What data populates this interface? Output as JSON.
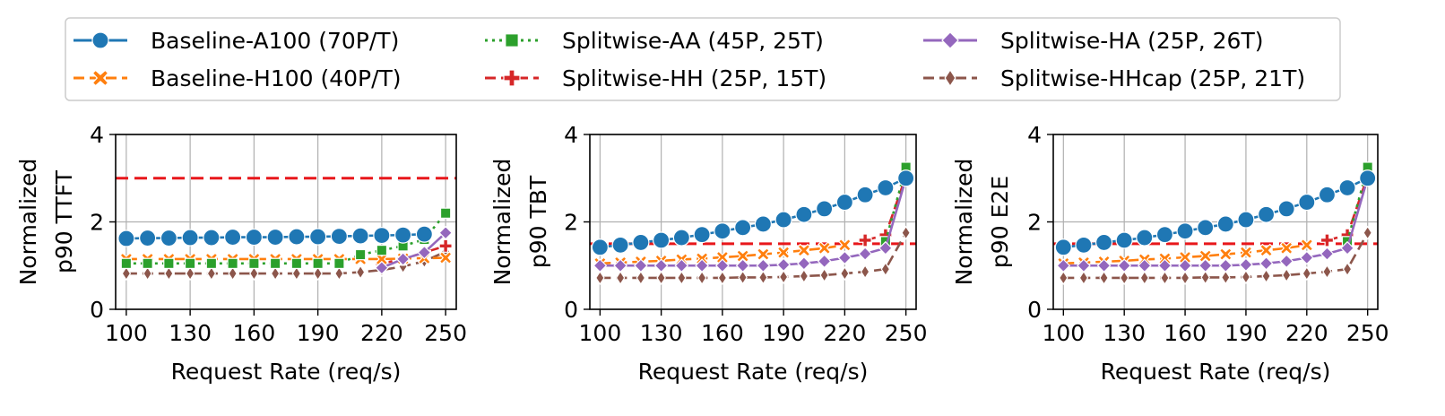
{
  "legend": {
    "entries": [
      {
        "label": "Baseline-A100 (70P/T)",
        "series": "A100",
        "color": "#1f77b4",
        "marker": "circle",
        "dash": "solid"
      },
      {
        "label": "Splitwise-AA (45P, 25T)",
        "series": "AA",
        "color": "#2ca02c",
        "marker": "square",
        "dash": "dotted"
      },
      {
        "label": "Splitwise-HA (25P, 26T)",
        "series": "HA",
        "color": "#9467bd",
        "marker": "diamond",
        "dash": "solid"
      },
      {
        "label": "Baseline-H100 (40P/T)",
        "series": "H100",
        "color": "#ff7f0e",
        "marker": "x",
        "dash": "dashed"
      },
      {
        "label": "Splitwise-HH (25P, 15T)",
        "series": "HH",
        "color": "#d62728",
        "marker": "plus",
        "dash": "dashed"
      },
      {
        "label": "Splitwise-HHcap (25P, 21T)",
        "series": "HHcap",
        "color": "#8c564b",
        "marker": "thin_diamond",
        "dash": "dashed"
      }
    ]
  },
  "chart_data": [
    {
      "type": "line",
      "title": "",
      "xlabel": "Request Rate (req/s)",
      "ylabel": [
        "Normalized",
        "p90 TTFT"
      ],
      "xlim": [
        95,
        255
      ],
      "ylim": [
        0,
        4
      ],
      "xticks": [
        100,
        130,
        160,
        190,
        220,
        250
      ],
      "yticks": [
        0,
        2,
        4
      ],
      "grid": true,
      "slo_line": 3,
      "x": [
        100,
        110,
        120,
        130,
        140,
        150,
        160,
        170,
        180,
        190,
        200,
        210,
        220,
        230,
        240,
        250
      ],
      "series": [
        {
          "name": "Baseline-A100 (70P/T)",
          "key": "A100",
          "values": [
            1.62,
            1.63,
            1.63,
            1.64,
            1.64,
            1.65,
            1.65,
            1.65,
            1.66,
            1.66,
            1.67,
            1.68,
            1.69,
            1.7,
            1.72,
            null
          ]
        },
        {
          "name": "Baseline-H100 (40P/T)",
          "key": "H100",
          "values": [
            1.15,
            1.15,
            1.15,
            1.15,
            1.15,
            1.15,
            1.15,
            1.15,
            1.15,
            1.15,
            1.15,
            1.15,
            1.15,
            1.16,
            1.17,
            1.18
          ]
        },
        {
          "name": "Splitwise-AA (45P, 25T)",
          "key": "AA",
          "values": [
            1.05,
            1.05,
            1.05,
            1.05,
            1.05,
            1.05,
            1.05,
            1.05,
            1.05,
            1.05,
            1.05,
            1.25,
            1.35,
            1.45,
            1.6,
            2.2
          ]
        },
        {
          "name": "Splitwise-HH (25P, 15T)",
          "key": "HH",
          "values": [
            null,
            null,
            null,
            null,
            null,
            null,
            null,
            null,
            null,
            null,
            null,
            null,
            1.05,
            1.15,
            1.3,
            1.45
          ]
        },
        {
          "name": "Splitwise-HA (25P, 26T)",
          "key": "HA",
          "values": [
            null,
            null,
            null,
            null,
            null,
            null,
            null,
            null,
            null,
            null,
            null,
            null,
            0.95,
            1.15,
            1.3,
            1.75
          ]
        },
        {
          "name": "Splitwise-HHcap (25P, 21T)",
          "key": "HHcap",
          "values": [
            0.82,
            0.82,
            0.82,
            0.82,
            0.82,
            0.82,
            0.82,
            0.82,
            0.82,
            0.82,
            0.82,
            0.85,
            0.9,
            0.98,
            1.1,
            1.32
          ]
        }
      ]
    },
    {
      "type": "line",
      "title": "",
      "xlabel": "Request Rate (req/s)",
      "ylabel": [
        "Normalized",
        "p90 TBT"
      ],
      "xlim": [
        95,
        255
      ],
      "ylim": [
        0,
        4
      ],
      "xticks": [
        100,
        130,
        160,
        190,
        220,
        250
      ],
      "yticks": [
        0,
        2,
        4
      ],
      "grid": true,
      "slo_line": 1.5,
      "x": [
        100,
        110,
        120,
        130,
        140,
        150,
        160,
        170,
        180,
        190,
        200,
        210,
        220,
        230,
        240,
        250
      ],
      "series": [
        {
          "name": "Baseline-A100 (70P/T)",
          "key": "A100",
          "values": [
            1.42,
            1.47,
            1.53,
            1.58,
            1.64,
            1.71,
            1.79,
            1.87,
            1.95,
            2.05,
            2.17,
            2.3,
            2.45,
            2.62,
            2.78,
            3.0
          ]
        },
        {
          "name": "Baseline-H100 (40P/T)",
          "key": "H100",
          "values": [
            1.05,
            1.07,
            1.09,
            1.11,
            1.14,
            1.16,
            1.19,
            1.22,
            1.26,
            1.3,
            1.35,
            1.4,
            1.47,
            null,
            null,
            null
          ]
        },
        {
          "name": "Splitwise-AA (45P, 25T)",
          "key": "AA",
          "values": [
            null,
            null,
            null,
            null,
            null,
            null,
            null,
            null,
            null,
            null,
            null,
            null,
            null,
            null,
            1.55,
            3.25
          ]
        },
        {
          "name": "Splitwise-HH (25P, 15T)",
          "key": "HH",
          "values": [
            null,
            null,
            null,
            null,
            null,
            null,
            null,
            null,
            null,
            null,
            null,
            null,
            null,
            1.58,
            1.7,
            3.05
          ]
        },
        {
          "name": "Splitwise-HA (25P, 26T)",
          "key": "HA",
          "values": [
            1.0,
            1.0,
            1.0,
            1.0,
            1.0,
            1.0,
            1.0,
            1.0,
            1.0,
            1.02,
            1.05,
            1.1,
            1.18,
            1.27,
            1.4,
            3.0
          ]
        },
        {
          "name": "Splitwise-HHcap (25P, 21T)",
          "key": "HHcap",
          "values": [
            0.72,
            0.72,
            0.72,
            0.72,
            0.72,
            0.72,
            0.72,
            0.73,
            0.73,
            0.74,
            0.76,
            0.78,
            0.82,
            0.86,
            0.92,
            1.75
          ]
        }
      ]
    },
    {
      "type": "line",
      "title": "",
      "xlabel": "Request Rate (req/s)",
      "ylabel": [
        "Normalized",
        "p90 E2E"
      ],
      "xlim": [
        95,
        255
      ],
      "ylim": [
        0,
        4
      ],
      "xticks": [
        100,
        130,
        160,
        190,
        220,
        250
      ],
      "yticks": [
        0,
        2,
        4
      ],
      "grid": true,
      "slo_line": 1.5,
      "x": [
        100,
        110,
        120,
        130,
        140,
        150,
        160,
        170,
        180,
        190,
        200,
        210,
        220,
        230,
        240,
        250
      ],
      "series": [
        {
          "name": "Baseline-A100 (70P/T)",
          "key": "A100",
          "values": [
            1.42,
            1.47,
            1.53,
            1.58,
            1.64,
            1.71,
            1.79,
            1.87,
            1.95,
            2.05,
            2.17,
            2.3,
            2.45,
            2.62,
            2.78,
            3.0
          ]
        },
        {
          "name": "Baseline-H100 (40P/T)",
          "key": "H100",
          "values": [
            1.05,
            1.07,
            1.09,
            1.11,
            1.14,
            1.16,
            1.19,
            1.22,
            1.26,
            1.3,
            1.35,
            1.4,
            1.47,
            null,
            null,
            null
          ]
        },
        {
          "name": "Splitwise-AA (45P, 25T)",
          "key": "AA",
          "values": [
            null,
            null,
            null,
            null,
            null,
            null,
            null,
            null,
            null,
            null,
            null,
            null,
            null,
            null,
            1.55,
            3.25
          ]
        },
        {
          "name": "Splitwise-HH (25P, 15T)",
          "key": "HH",
          "values": [
            null,
            null,
            null,
            null,
            null,
            null,
            null,
            null,
            null,
            null,
            null,
            null,
            null,
            1.58,
            1.7,
            3.05
          ]
        },
        {
          "name": "Splitwise-HA (25P, 26T)",
          "key": "HA",
          "values": [
            1.0,
            1.0,
            1.0,
            1.0,
            1.0,
            1.0,
            1.0,
            1.0,
            1.0,
            1.02,
            1.05,
            1.1,
            1.18,
            1.27,
            1.4,
            3.0
          ]
        },
        {
          "name": "Splitwise-HHcap (25P, 21T)",
          "key": "HHcap",
          "values": [
            0.72,
            0.72,
            0.72,
            0.72,
            0.72,
            0.72,
            0.72,
            0.73,
            0.73,
            0.74,
            0.76,
            0.78,
            0.82,
            0.86,
            0.92,
            1.75
          ]
        }
      ]
    }
  ]
}
